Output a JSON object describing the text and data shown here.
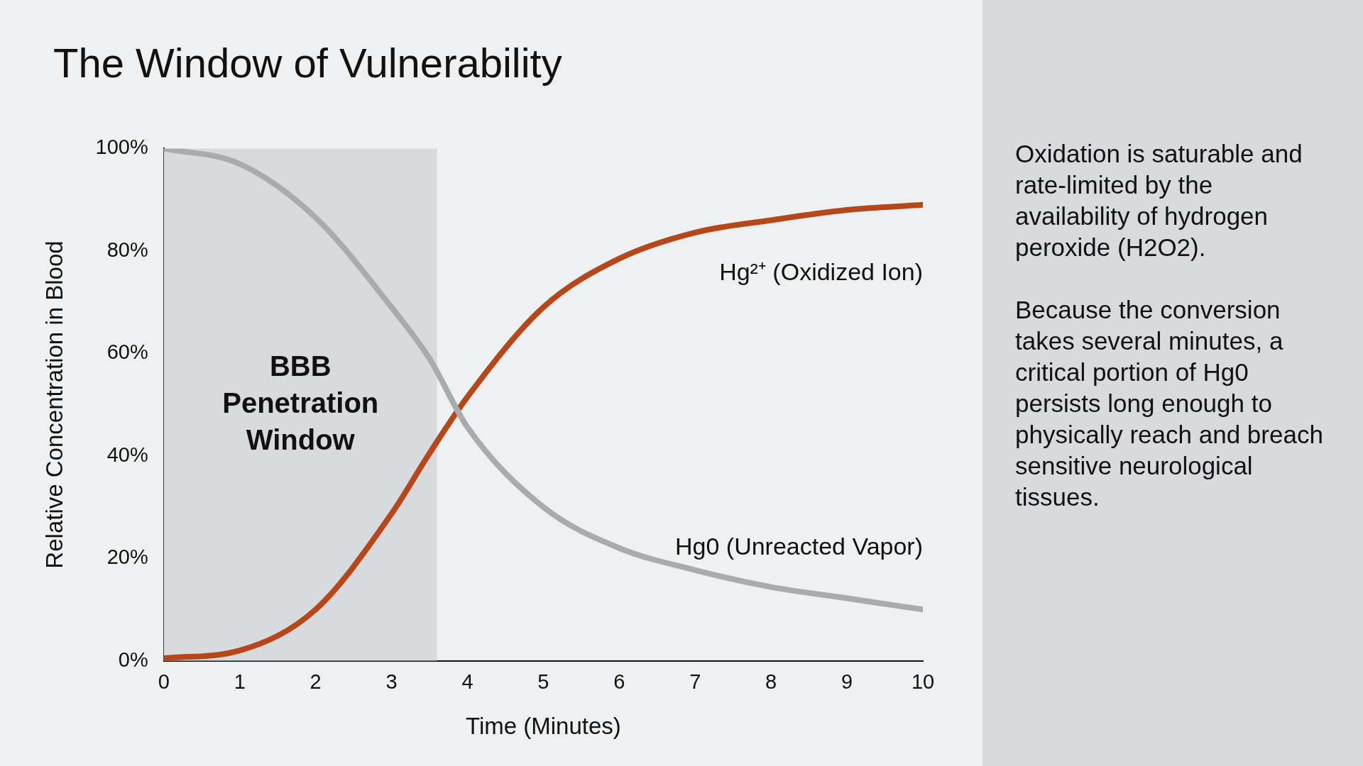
{
  "chart_data": {
    "type": "line",
    "title": "The Window of Vulnerability",
    "xlabel": "Time (Minutes)",
    "ylabel": "Relative Concentration in Blood",
    "x": [
      0,
      1,
      2,
      3,
      3.5,
      4,
      5,
      6,
      7,
      8,
      9,
      10
    ],
    "series": [
      {
        "name": "Hg0 (Unreacted Vapor)",
        "color": "#a9abae",
        "values": [
          100,
          97,
          86.5,
          69,
          59,
          45.6,
          30,
          22,
          17.7,
          14.4,
          12.2,
          10
        ]
      },
      {
        "name": "Hg²⁺ (Oxidized Ion)",
        "color": "#b5471b",
        "values": [
          0.5,
          2,
          10,
          28.7,
          40.5,
          51.5,
          69,
          78.5,
          83.6,
          86,
          88,
          89
        ]
      }
    ],
    "xlim": [
      0,
      10
    ],
    "xticks": [
      0,
      1,
      2,
      3,
      4,
      5,
      6,
      7,
      8,
      9,
      10
    ],
    "ylim": [
      0,
      100
    ],
    "yticks": [
      {
        "value": 0,
        "label": "0%"
      },
      {
        "value": 20,
        "label": "20%"
      },
      {
        "value": 40,
        "label": "40%"
      },
      {
        "value": 60,
        "label": "60%"
      },
      {
        "value": 80,
        "label": "80%"
      },
      {
        "value": 100,
        "label": "100%"
      }
    ],
    "bands": [
      {
        "axis": "x",
        "from": 0,
        "to": 3.6,
        "label": "BBB Penetration Window",
        "color": "#d8dadd"
      }
    ],
    "grid": false,
    "legend": false,
    "marker": "none",
    "line_style": "solid",
    "annotations": [
      "Oxidation is saturable and rate-limited by the availability of hydrogen peroxide (H2O2).",
      "Because the conversion takes several minutes, a critical portion of Hg0 persists long enough to physically reach and breach sensitive neurological tissues."
    ]
  }
}
